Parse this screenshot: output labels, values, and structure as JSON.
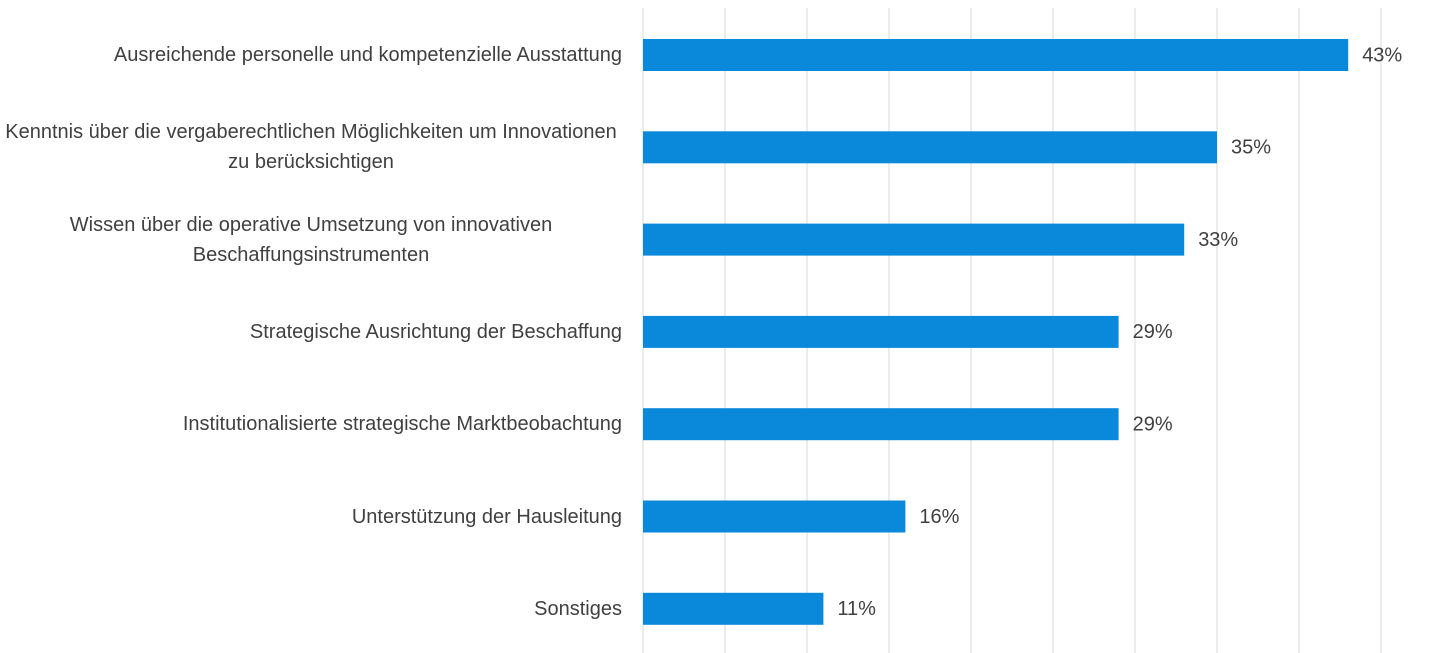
{
  "chart_data": {
    "type": "bar",
    "orientation": "horizontal",
    "categories": [
      "Ausreichende personelle und kompetenzielle Ausstattung",
      "Kenntnis über die vergaberechtlichen Möglichkeiten um Innovationen zu berücksichtigen",
      "Wissen über die operative Umsetzung von innovativen Beschaffungsinstrumenten",
      "Strategische Ausrichtung der Beschaffung",
      "Institutionalisierte strategische Marktbeobachtung",
      "Unterstützung der Hausleitung",
      "Sonstiges"
    ],
    "values": [
      43,
      35,
      33,
      29,
      29,
      16,
      11
    ],
    "value_labels": [
      "43%",
      "35%",
      "33%",
      "29%",
      "29%",
      "16%",
      "11%"
    ],
    "color": "#0a88da",
    "xlim": [
      0,
      45
    ],
    "xticks": [
      0,
      5,
      10,
      15,
      20,
      25,
      30,
      35,
      40,
      45
    ],
    "grid": true
  }
}
